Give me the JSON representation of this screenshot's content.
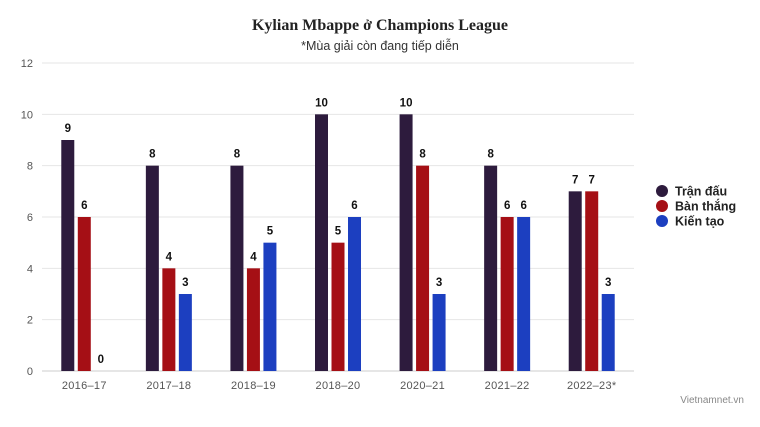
{
  "chart_data": {
    "type": "bar",
    "title": "Kylian Mbappe ở Champions League",
    "subtitle": "*Mùa giải còn đang tiếp diễn",
    "categories": [
      "2016–17",
      "2017–18",
      "2018–19",
      "2018–20",
      "2020–21",
      "2021–22",
      "2022–23*"
    ],
    "series": [
      {
        "name": "Trận đấu",
        "color": "#2d1b3d",
        "values": [
          9,
          8,
          8,
          10,
          10,
          8,
          7
        ]
      },
      {
        "name": "Bàn thắng",
        "color": "#a50f15",
        "values": [
          6,
          4,
          4,
          5,
          8,
          6,
          7
        ]
      },
      {
        "name": "Kiến tạo",
        "color": "#1c3fc0",
        "values": [
          0,
          3,
          5,
          6,
          3,
          6,
          3
        ]
      }
    ],
    "ylim": [
      0,
      12
    ],
    "yticks": [
      0,
      2,
      4,
      6,
      8,
      10,
      12
    ],
    "xlabel": "",
    "ylabel": "",
    "grid": true,
    "legend_position": "right",
    "credit": "Vietnamnet.vn"
  }
}
